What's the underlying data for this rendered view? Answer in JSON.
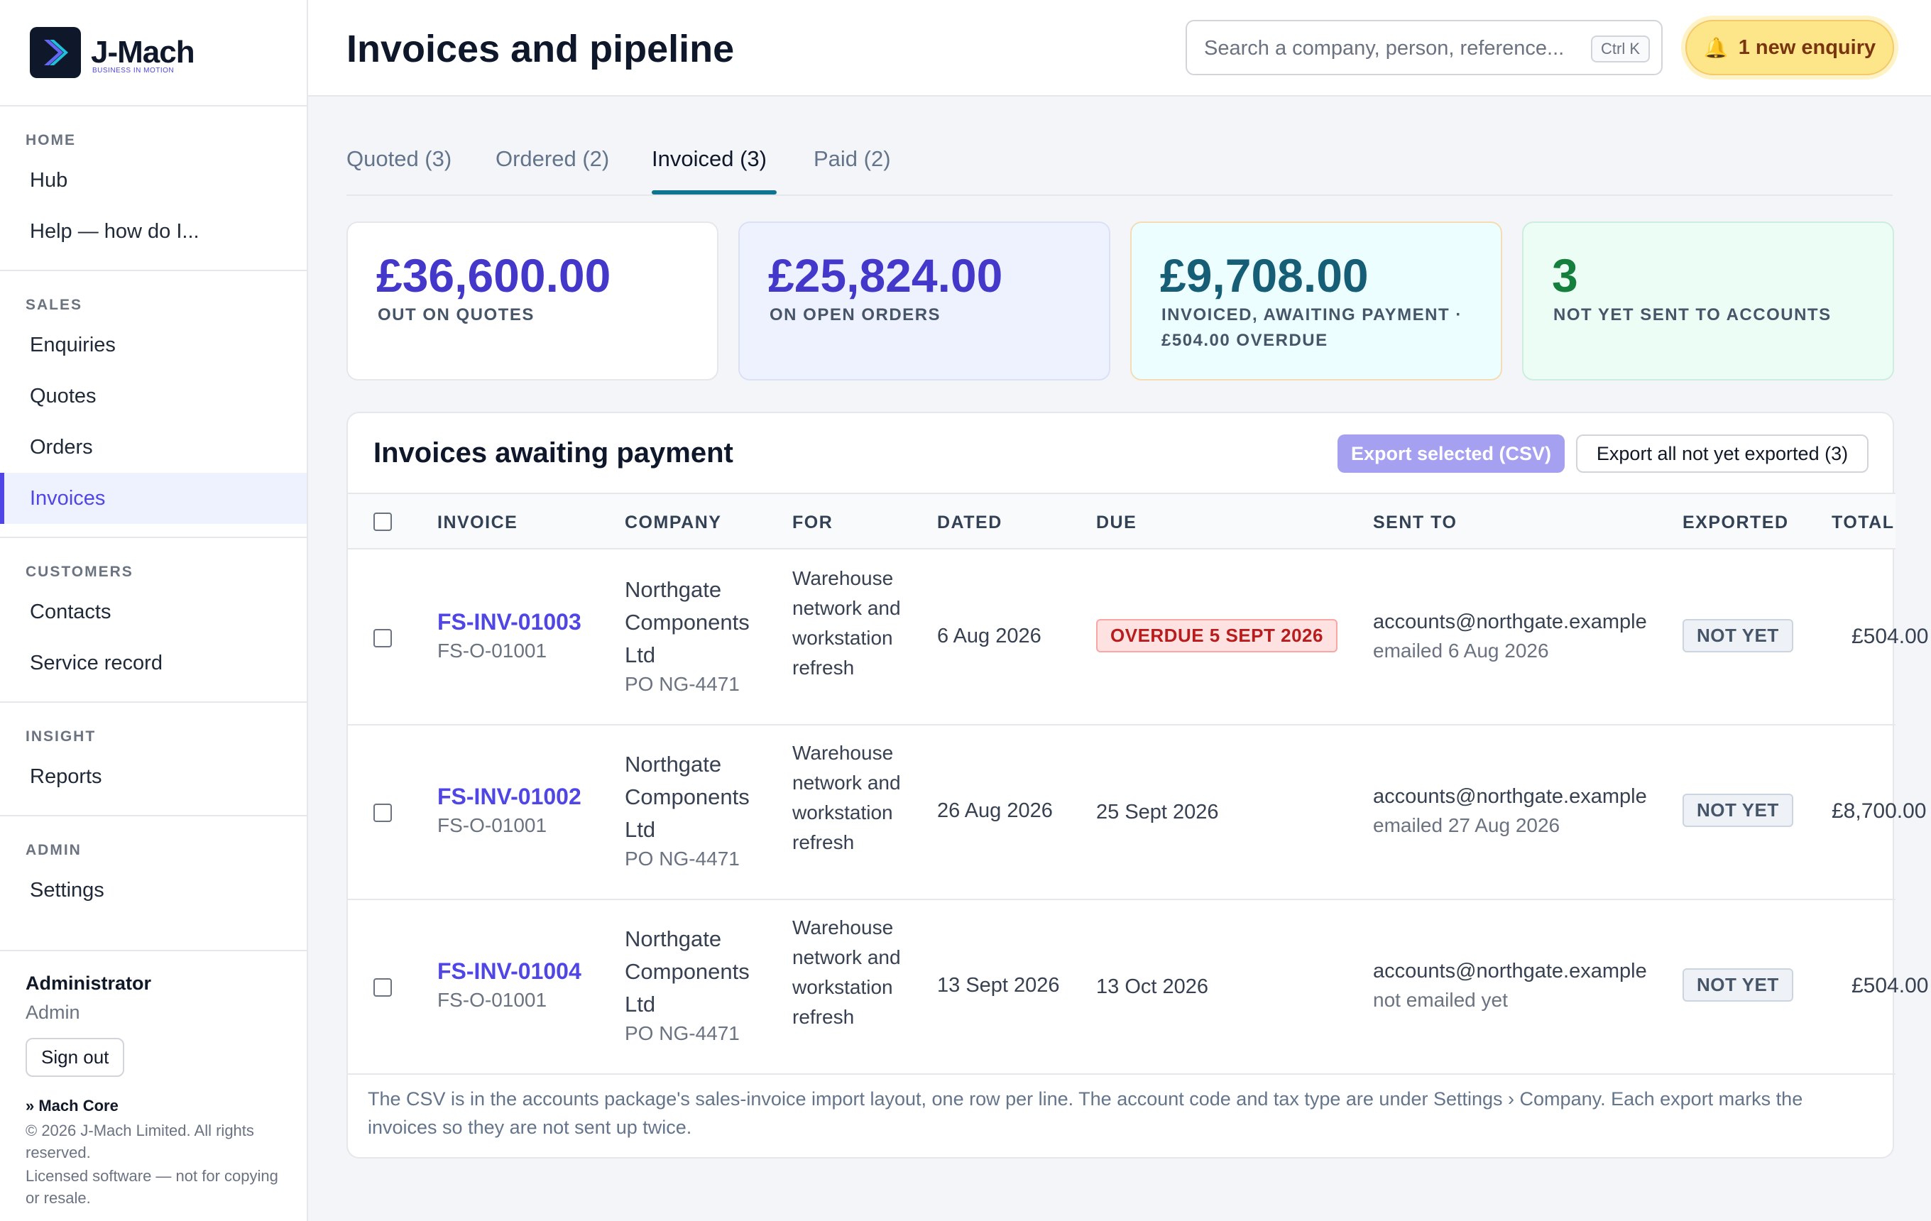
{
  "brand": {
    "name": "J-Mach",
    "tagline": "BUSINESS IN MOTION"
  },
  "sidebar": {
    "sections": [
      {
        "heading": "HOME",
        "items": [
          "Hub",
          "Help — how do I..."
        ]
      },
      {
        "heading": "SALES",
        "items": [
          "Enquiries",
          "Quotes",
          "Orders",
          "Invoices"
        ]
      },
      {
        "heading": "CUSTOMERS",
        "items": [
          "Contacts",
          "Service record"
        ]
      },
      {
        "heading": "INSIGHT",
        "items": [
          "Reports"
        ]
      },
      {
        "heading": "ADMIN",
        "items": [
          "Settings"
        ]
      }
    ],
    "active_item": "Invoices",
    "user": {
      "name": "Administrator",
      "role": "Admin",
      "signout": "Sign out"
    },
    "brand_line": "» Mach Core",
    "copyright": "© 2026 J-Mach Limited. All rights reserved.",
    "license": "Licensed software — not for copying or resale."
  },
  "header": {
    "title": "Invoices and pipeline",
    "search_placeholder": "Search a company, person, reference...",
    "search_shortcut": "Ctrl K",
    "enquiry_label": "1 new enquiry"
  },
  "tabs": [
    {
      "label": "Quoted (3)",
      "active": false
    },
    {
      "label": "Ordered (2)",
      "active": false
    },
    {
      "label": "Invoiced (3)",
      "active": true
    },
    {
      "label": "Paid (2)",
      "active": false
    }
  ],
  "stats": [
    {
      "value": "£36,600.00",
      "label": "OUT ON QUOTES",
      "bg": "#ffffff",
      "border": "#e5e7eb",
      "color": "#4338ca"
    },
    {
      "value": "£25,824.00",
      "label": "ON OPEN ORDERS",
      "bg": "#eef2ff",
      "border": "#dbe1f5",
      "color": "#4338ca"
    },
    {
      "value": "£9,708.00",
      "label": "INVOICED, AWAITING PAYMENT · £504.00 OVERDUE",
      "bg": "#ecfeff",
      "border": "#f5dcb4",
      "color": "#155e75"
    },
    {
      "value": "3",
      "label": "NOT YET SENT TO ACCOUNTS",
      "bg": "#ecfdf5",
      "border": "#cdeedd",
      "color": "#15803d"
    }
  ],
  "panel": {
    "title": "Invoices awaiting payment",
    "export_selected": "Export selected (CSV)",
    "export_all": "Export all not yet exported (3)",
    "columns": [
      "INVOICE",
      "COMPANY",
      "FOR",
      "DATED",
      "DUE",
      "SENT TO",
      "EXPORTED",
      "TOTAL"
    ],
    "rows": [
      {
        "invoice": "FS-INV-01003",
        "order": "FS-O-01001",
        "company": "Northgate Components Ltd",
        "po": "PO NG-4471",
        "for": "Warehouse network and workstation refresh",
        "dated": "6 Aug 2026",
        "due": "OVERDUE 5 SEPT 2026",
        "overdue": true,
        "sent_to": "accounts@northgate.example",
        "sent_status": "emailed 6 Aug 2026",
        "exported": "NOT YET",
        "total": "£504.00"
      },
      {
        "invoice": "FS-INV-01002",
        "order": "FS-O-01001",
        "company": "Northgate Components Ltd",
        "po": "PO NG-4471",
        "for": "Warehouse network and workstation refresh",
        "dated": "26 Aug 2026",
        "due": "25 Sept 2026",
        "overdue": false,
        "sent_to": "accounts@northgate.example",
        "sent_status": "emailed 27 Aug 2026",
        "exported": "NOT YET",
        "total": "£8,700.00"
      },
      {
        "invoice": "FS-INV-01004",
        "order": "FS-O-01001",
        "company": "Northgate Components Ltd",
        "po": "PO NG-4471",
        "for": "Warehouse network and workstation refresh",
        "dated": "13 Sept 2026",
        "due": "13 Oct 2026",
        "overdue": false,
        "sent_to": "accounts@northgate.example",
        "sent_status": "not emailed yet",
        "exported": "NOT YET",
        "total": "£504.00"
      }
    ],
    "footnote": "The CSV is in the accounts package's sales-invoice import layout, one row per line. The account code and tax type are under Settings › Company. Each export marks the invoices so they are not sent up twice."
  }
}
